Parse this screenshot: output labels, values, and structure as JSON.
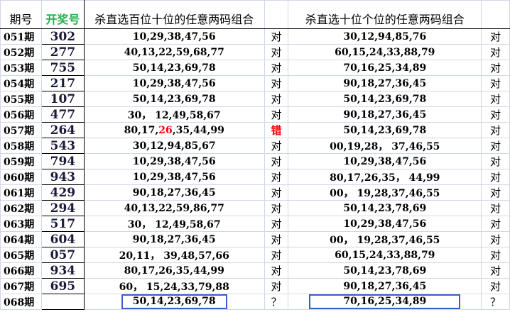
{
  "headers": {
    "period": "期号",
    "draw": "开奖号",
    "kill_hundreds_tens": "杀直选百位十位的任意两码组合",
    "kill_tens_units": "杀直选十位个位的任意两码组合"
  },
  "colors": {
    "draw_header": "#22b14c",
    "wrong": "#ff0000",
    "highlight_box": "#3b5fc8"
  },
  "rows": [
    {
      "period": "051期",
      "draw": "302",
      "ht": [
        "10,29,38,47,56"
      ],
      "ht_result": "对",
      "tu": "30,12,94,85,76",
      "tu_result": "对"
    },
    {
      "period": "052期",
      "draw": "277",
      "ht": [
        "40,13,22,59,68,77"
      ],
      "ht_result": "对",
      "tu": "60,15,24,33,88,79",
      "tu_result": "对"
    },
    {
      "period": "053期",
      "draw": "755",
      "ht": [
        "50,14,23,69,78"
      ],
      "ht_result": "对",
      "tu": "70,16,25,34,89",
      "tu_result": "对"
    },
    {
      "period": "054期",
      "draw": "217",
      "ht": [
        "10,29,38,47,56"
      ],
      "ht_result": "对",
      "tu": "90,18,27,36,45",
      "tu_result": "对"
    },
    {
      "period": "055期",
      "draw": "107",
      "ht": [
        "50,14,23,69,78"
      ],
      "ht_result": "对",
      "tu": "50,14,23,69,78",
      "tu_result": "对"
    },
    {
      "period": "056期",
      "draw": "477",
      "ht": [
        "30， 12,49,58,67"
      ],
      "ht_result": "对",
      "tu": "90,18,27,36,45",
      "tu_result": "对"
    },
    {
      "period": "057期",
      "draw": "264",
      "ht": [
        "80,17,",
        "26",
        ",35,44,99"
      ],
      "ht_result": "错",
      "tu": "50,14,23,69,78",
      "tu_result": "对"
    },
    {
      "period": "058期",
      "draw": "543",
      "ht": [
        "30,12,94,85,67"
      ],
      "ht_result": "对",
      "tu": "00,19,28， 37,46,55",
      "tu_result": "对"
    },
    {
      "period": "059期",
      "draw": "794",
      "ht": [
        "10,29,38,47,56"
      ],
      "ht_result": "对",
      "tu": "10,29,38,47,56",
      "tu_result": "对"
    },
    {
      "period": "060期",
      "draw": "943",
      "ht": [
        "10,29,38,47,56"
      ],
      "ht_result": "对",
      "tu": "80,17,26,35， 44,99",
      "tu_result": "对"
    },
    {
      "period": "061期",
      "draw": "429",
      "ht": [
        "90,18,27,36,45"
      ],
      "ht_result": "对",
      "tu": "00， 19,28,37,46,55",
      "tu_result": "对"
    },
    {
      "period": "062期",
      "draw": "294",
      "ht": [
        "40,13,22,59,86,77"
      ],
      "ht_result": "对",
      "tu": "50,14,23,78,69",
      "tu_result": "对"
    },
    {
      "period": "063期",
      "draw": "517",
      "ht": [
        "30， 12,49,58,67"
      ],
      "ht_result": "对",
      "tu": "10,29,38,47,56",
      "tu_result": "对"
    },
    {
      "period": "064期",
      "draw": "604",
      "ht": [
        "90,18,27,36,45"
      ],
      "ht_result": "对",
      "tu": "00， 19,28,37,46,55",
      "tu_result": "对"
    },
    {
      "period": "065期",
      "draw": "057",
      "ht": [
        "20,11， 39,48,57,66"
      ],
      "ht_result": "对",
      "tu": "60,15,24,33,88,79",
      "tu_result": "对"
    },
    {
      "period": "066期",
      "draw": "934",
      "ht": [
        "80,17,26,35,44,99"
      ],
      "ht_result": "对",
      "tu": "50,14,23,78,69",
      "tu_result": "对"
    },
    {
      "period": "067期",
      "draw": "695",
      "ht": [
        "60， 15,24,33,79,88"
      ],
      "ht_result": "对",
      "tu": "90,18,27,36,45",
      "tu_result": "对"
    },
    {
      "period": "068期",
      "draw": "",
      "ht": [
        "50,14,23,69,78"
      ],
      "ht_result": "？",
      "tu": "70,16,25,34,89",
      "tu_result": "？",
      "current": true
    }
  ]
}
